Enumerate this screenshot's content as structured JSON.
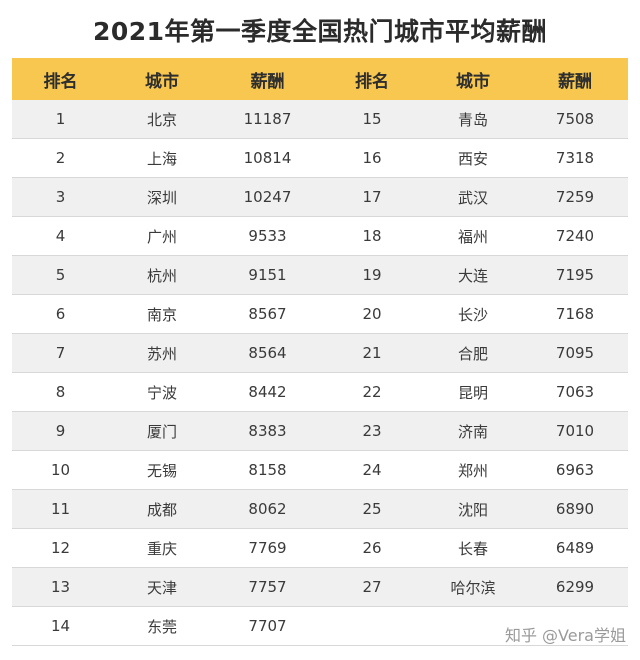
{
  "title": "2021年第一季度全国热门城市平均薪酬",
  "headers": {
    "rank": "排名",
    "city": "城市",
    "salary": "薪酬"
  },
  "rows": [
    {
      "left": {
        "rank": "1",
        "city": "北京",
        "salary": "11187"
      },
      "right": {
        "rank": "15",
        "city": "青岛",
        "salary": "7508"
      }
    },
    {
      "left": {
        "rank": "2",
        "city": "上海",
        "salary": "10814"
      },
      "right": {
        "rank": "16",
        "city": "西安",
        "salary": "7318"
      }
    },
    {
      "left": {
        "rank": "3",
        "city": "深圳",
        "salary": "10247"
      },
      "right": {
        "rank": "17",
        "city": "武汉",
        "salary": "7259"
      }
    },
    {
      "left": {
        "rank": "4",
        "city": "广州",
        "salary": "9533"
      },
      "right": {
        "rank": "18",
        "city": "福州",
        "salary": "7240"
      }
    },
    {
      "left": {
        "rank": "5",
        "city": "杭州",
        "salary": "9151"
      },
      "right": {
        "rank": "19",
        "city": "大连",
        "salary": "7195"
      }
    },
    {
      "left": {
        "rank": "6",
        "city": "南京",
        "salary": "8567"
      },
      "right": {
        "rank": "20",
        "city": "长沙",
        "salary": "7168"
      }
    },
    {
      "left": {
        "rank": "7",
        "city": "苏州",
        "salary": "8564"
      },
      "right": {
        "rank": "21",
        "city": "合肥",
        "salary": "7095"
      }
    },
    {
      "left": {
        "rank": "8",
        "city": "宁波",
        "salary": "8442"
      },
      "right": {
        "rank": "22",
        "city": "昆明",
        "salary": "7063"
      }
    },
    {
      "left": {
        "rank": "9",
        "city": "厦门",
        "salary": "8383"
      },
      "right": {
        "rank": "23",
        "city": "济南",
        "salary": "7010"
      }
    },
    {
      "left": {
        "rank": "10",
        "city": "无锡",
        "salary": "8158"
      },
      "right": {
        "rank": "24",
        "city": "郑州",
        "salary": "6963"
      }
    },
    {
      "left": {
        "rank": "11",
        "city": "成都",
        "salary": "8062"
      },
      "right": {
        "rank": "25",
        "city": "沈阳",
        "salary": "6890"
      }
    },
    {
      "left": {
        "rank": "12",
        "city": "重庆",
        "salary": "7769"
      },
      "right": {
        "rank": "26",
        "city": "长春",
        "salary": "6489"
      }
    },
    {
      "left": {
        "rank": "13",
        "city": "天津",
        "salary": "7757"
      },
      "right": {
        "rank": "27",
        "city": "哈尔滨",
        "salary": "6299"
      }
    },
    {
      "left": {
        "rank": "14",
        "city": "东莞",
        "salary": "7707"
      },
      "right": {
        "rank": "",
        "city": "",
        "salary": ""
      }
    }
  ],
  "watermark": "知乎 @Vera学姐",
  "colors": {
    "header_bg": "#f7c74f",
    "row_alt_bg": "#f0f0f0",
    "row_bg": "#ffffff"
  }
}
